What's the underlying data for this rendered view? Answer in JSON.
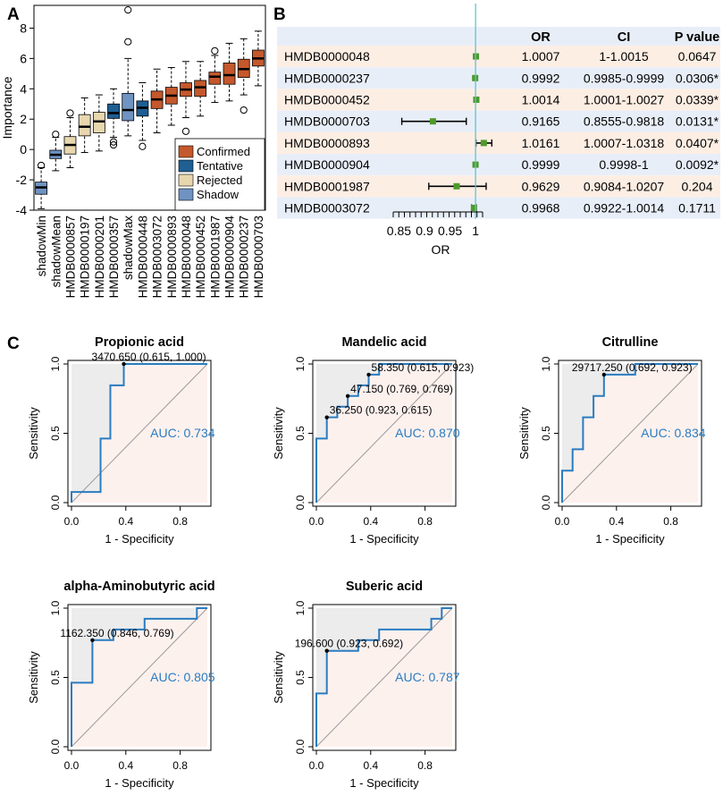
{
  "figure": {
    "panel_labels": {
      "a": "A",
      "b": "B",
      "c": "C"
    }
  },
  "chart_data": [
    {
      "id": "A",
      "type": "boxplot",
      "ylabel": "Importance",
      "ylim": [
        -4,
        9.5
      ],
      "yticks": [
        -4,
        -2,
        0,
        2,
        4,
        6,
        8
      ],
      "legend": {
        "position": "bottom-right",
        "entries": [
          {
            "label": "Confirmed",
            "color": "#c5582c"
          },
          {
            "label": "Tentative",
            "color": "#1f5f93"
          },
          {
            "label": "Rejected",
            "color": "#e8d7ae"
          },
          {
            "label": "Shadow",
            "color": "#6f93c2"
          }
        ]
      },
      "boxes": [
        {
          "name": "shadowMin",
          "group": "Shadow",
          "whisker_low": -3.9,
          "q1": -2.95,
          "median": -2.5,
          "q3": -2.15,
          "whisker_high": -1.2,
          "outliers": [
            -1.05
          ]
        },
        {
          "name": "shadowMean",
          "group": "Shadow",
          "whisker_low": -1.4,
          "q1": -0.6,
          "median": -0.35,
          "q3": -0.05,
          "whisker_high": 0.8,
          "outliers": [
            1.0
          ]
        },
        {
          "name": "HMDB0000857",
          "group": "Rejected",
          "whisker_low": -1.2,
          "q1": -0.3,
          "median": 0.3,
          "q3": 0.85,
          "whisker_high": 2.1,
          "outliers": [
            2.4
          ]
        },
        {
          "name": "HMDB0000197",
          "group": "Rejected",
          "whisker_low": -0.2,
          "q1": 0.9,
          "median": 1.5,
          "q3": 2.3,
          "whisker_high": 3.4,
          "outliers": []
        },
        {
          "name": "HMDB0000201",
          "group": "Rejected",
          "whisker_low": -0.1,
          "q1": 1.1,
          "median": 1.85,
          "q3": 2.45,
          "whisker_high": 3.6,
          "outliers": []
        },
        {
          "name": "HMDB0000357",
          "group": "Tentative",
          "whisker_low": 0.8,
          "q1": 2.05,
          "median": 2.4,
          "q3": 3.0,
          "whisker_high": 4.0,
          "outliers": [
            0.5,
            0.3
          ]
        },
        {
          "name": "shadowMax",
          "group": "Shadow",
          "whisker_low": 0.9,
          "q1": 1.9,
          "median": 2.6,
          "q3": 3.7,
          "whisker_high": 6.0,
          "outliers": [
            7.1,
            9.2
          ]
        },
        {
          "name": "HMDB0000448",
          "group": "Tentative",
          "whisker_low": 0.6,
          "q1": 2.2,
          "median": 2.75,
          "q3": 3.2,
          "whisker_high": 4.4,
          "outliers": [
            0.2
          ]
        },
        {
          "name": "HMDB0003072",
          "group": "Confirmed",
          "whisker_low": 1.1,
          "q1": 2.7,
          "median": 3.3,
          "q3": 3.85,
          "whisker_high": 5.3,
          "outliers": []
        },
        {
          "name": "HMDB0000893",
          "group": "Confirmed",
          "whisker_low": 1.6,
          "q1": 3.0,
          "median": 3.55,
          "q3": 4.1,
          "whisker_high": 5.4,
          "outliers": []
        },
        {
          "name": "HMDB0000048",
          "group": "Confirmed",
          "whisker_low": 2.1,
          "q1": 3.5,
          "median": 3.95,
          "q3": 4.4,
          "whisker_high": 5.8,
          "outliers": [
            1.2,
            0.2
          ]
        },
        {
          "name": "HMDB0000452",
          "group": "Confirmed",
          "whisker_low": 2.2,
          "q1": 3.5,
          "median": 4.1,
          "q3": 4.55,
          "whisker_high": 5.8,
          "outliers": []
        },
        {
          "name": "HMDB0001987",
          "group": "Confirmed",
          "whisker_low": 3.1,
          "q1": 4.3,
          "median": 4.8,
          "q3": 5.1,
          "whisker_high": 6.2,
          "outliers": [
            6.5
          ]
        },
        {
          "name": "HMDB0000904",
          "group": "Confirmed",
          "whisker_low": 3.2,
          "q1": 4.3,
          "median": 4.9,
          "q3": 5.7,
          "whisker_high": 7.0,
          "outliers": []
        },
        {
          "name": "HMDB0000237",
          "group": "Confirmed",
          "whisker_low": 3.6,
          "q1": 4.75,
          "median": 5.3,
          "q3": 5.95,
          "whisker_high": 7.3,
          "outliers": [
            2.6
          ]
        },
        {
          "name": "HMDB0000703",
          "group": "Confirmed",
          "whisker_low": 4.2,
          "q1": 5.5,
          "median": 6.0,
          "q3": 6.55,
          "whisker_high": 7.8,
          "outliers": []
        }
      ]
    },
    {
      "id": "B",
      "type": "forest",
      "xlabel": "OR",
      "xticks": [
        "0.85",
        "0.9",
        "0.95",
        "1"
      ],
      "xrange": [
        0.83,
        1.04
      ],
      "ref_line": 1,
      "columns": [
        "OR",
        "CI",
        "P value"
      ],
      "rows": [
        {
          "name": "HMDB0000048",
          "or": 1.0007,
          "lo": 1.0,
          "hi": 1.0015,
          "or_text": "1.0007",
          "ci_text": "1-1.0015",
          "p_text": "0.0647"
        },
        {
          "name": "HMDB0000237",
          "or": 0.9992,
          "lo": 0.9985,
          "hi": 0.9999,
          "or_text": "0.9992",
          "ci_text": "0.9985-0.9999",
          "p_text": "0.0306*"
        },
        {
          "name": "HMDB0000452",
          "or": 1.0014,
          "lo": 1.0001,
          "hi": 1.0027,
          "or_text": "1.0014",
          "ci_text": "1.0001-1.0027",
          "p_text": "0.0339*"
        },
        {
          "name": "HMDB0000703",
          "or": 0.9165,
          "lo": 0.8555,
          "hi": 0.9818,
          "or_text": "0.9165",
          "ci_text": "0.8555-0.9818",
          "p_text": "0.0131*"
        },
        {
          "name": "HMDB0000893",
          "or": 1.0161,
          "lo": 1.0007,
          "hi": 1.0318,
          "or_text": "1.0161",
          "ci_text": "1.0007-1.0318",
          "p_text": "0.0407*"
        },
        {
          "name": "HMDB0000904",
          "or": 0.9999,
          "lo": 0.9998,
          "hi": 1.0,
          "or_text": "0.9999",
          "ci_text": "0.9998-1",
          "p_text": "0.0092*"
        },
        {
          "name": "HMDB0001987",
          "or": 0.9629,
          "lo": 0.9084,
          "hi": 1.0207,
          "or_text": "0.9629",
          "ci_text": "0.9084-1.0207",
          "p_text": "0.204"
        },
        {
          "name": "HMDB0003072",
          "or": 0.9968,
          "lo": 0.9922,
          "hi": 1.0014,
          "or_text": "0.9968",
          "ci_text": "0.9922-1.0014",
          "p_text": "0.1711"
        }
      ]
    },
    {
      "id": "C1",
      "type": "roc",
      "title": "Propionic acid",
      "xlabel": "1 - Specificity",
      "ylabel": "Sensitivity",
      "ticks": [
        "0.0",
        "0.4",
        "0.8"
      ],
      "yticks": [
        "0.0",
        "0.5",
        "1.0"
      ],
      "auc_text": "AUC: 0.734",
      "threshold_text": "3470.650 (0.615, 1.000)",
      "threshold_point": [
        0.385,
        1.0
      ],
      "curve": [
        [
          0,
          0
        ],
        [
          0,
          0.077
        ],
        [
          0.214,
          0.077
        ],
        [
          0.214,
          0.462
        ],
        [
          0.286,
          0.462
        ],
        [
          0.286,
          0.846
        ],
        [
          0.385,
          0.846
        ],
        [
          0.385,
          1.0
        ],
        [
          1,
          1
        ]
      ]
    },
    {
      "id": "C2",
      "type": "roc",
      "title": "Mandelic acid",
      "xlabel": "1 - Specificity",
      "ylabel": "Sensitivity",
      "ticks": [
        "0.0",
        "0.4",
        "0.8"
      ],
      "yticks": [
        "0.0",
        "0.5",
        "1.0"
      ],
      "auc_text": "AUC: 0.870",
      "threshold_texts": [
        "58.350 (0.615, 0.923)",
        "47.150 (0.769, 0.769)",
        "36.250 (0.923, 0.615)"
      ],
      "threshold_points": [
        [
          0.385,
          0.923
        ],
        [
          0.231,
          0.769
        ],
        [
          0.077,
          0.615
        ]
      ],
      "curve": [
        [
          0,
          0
        ],
        [
          0,
          0.462
        ],
        [
          0.077,
          0.462
        ],
        [
          0.077,
          0.615
        ],
        [
          0.154,
          0.615
        ],
        [
          0.154,
          0.692
        ],
        [
          0.231,
          0.692
        ],
        [
          0.231,
          0.769
        ],
        [
          0.308,
          0.769
        ],
        [
          0.308,
          0.846
        ],
        [
          0.385,
          0.846
        ],
        [
          0.385,
          0.923
        ],
        [
          0.462,
          0.923
        ],
        [
          0.462,
          1.0
        ],
        [
          1,
          1
        ]
      ]
    },
    {
      "id": "C3",
      "type": "roc",
      "title": "Citrulline",
      "xlabel": "1 - Specificity",
      "ylabel": "Sensitivity",
      "ticks": [
        "0.0",
        "0.4",
        "0.8"
      ],
      "yticks": [
        "0.0",
        "0.5",
        "1.0"
      ],
      "auc_text": "AUC: 0.834",
      "threshold_text": "29717.250 (0.692, 0.923)",
      "threshold_point": [
        0.308,
        0.923
      ],
      "curve": [
        [
          0,
          0
        ],
        [
          0,
          0.231
        ],
        [
          0.077,
          0.231
        ],
        [
          0.077,
          0.385
        ],
        [
          0.154,
          0.385
        ],
        [
          0.154,
          0.615
        ],
        [
          0.231,
          0.615
        ],
        [
          0.231,
          0.769
        ],
        [
          0.308,
          0.769
        ],
        [
          0.308,
          0.923
        ],
        [
          0.538,
          0.923
        ],
        [
          0.538,
          1.0
        ],
        [
          1,
          1
        ]
      ]
    },
    {
      "id": "C4",
      "type": "roc",
      "title": "alpha-Aminobutyric acid",
      "xlabel": "1 - Specificity",
      "ylabel": "Sensitivity",
      "ticks": [
        "0.0",
        "0.4",
        "0.8"
      ],
      "yticks": [
        "0.0",
        "0.5",
        "1.0"
      ],
      "auc_text": "AUC: 0.805",
      "threshold_text": "1162.350 (0.846, 0.769)",
      "threshold_point": [
        0.154,
        0.769
      ],
      "curve": [
        [
          0,
          0
        ],
        [
          0,
          0.462
        ],
        [
          0.154,
          0.462
        ],
        [
          0.154,
          0.769
        ],
        [
          0.308,
          0.769
        ],
        [
          0.308,
          0.846
        ],
        [
          0.538,
          0.846
        ],
        [
          0.538,
          0.923
        ],
        [
          0.923,
          0.923
        ],
        [
          0.923,
          1.0
        ],
        [
          1,
          1
        ]
      ]
    },
    {
      "id": "C5",
      "type": "roc",
      "title": "Suberic acid",
      "xlabel": "1 - Specificity",
      "ylabel": "Sensitivity",
      "ticks": [
        "0.0",
        "0.4",
        "0.8"
      ],
      "yticks": [
        "0.0",
        "0.5",
        "1.0"
      ],
      "auc_text": "AUC: 0.787",
      "threshold_text": "196.600 (0.923, 0.692)",
      "threshold_point": [
        0.077,
        0.692
      ],
      "curve": [
        [
          0,
          0
        ],
        [
          0,
          0.385
        ],
        [
          0.077,
          0.385
        ],
        [
          0.077,
          0.692
        ],
        [
          0.308,
          0.692
        ],
        [
          0.308,
          0.769
        ],
        [
          0.462,
          0.769
        ],
        [
          0.462,
          0.846
        ],
        [
          0.846,
          0.846
        ],
        [
          0.846,
          0.923
        ],
        [
          0.923,
          0.923
        ],
        [
          0.923,
          1.0
        ],
        [
          1,
          1
        ]
      ]
    }
  ]
}
